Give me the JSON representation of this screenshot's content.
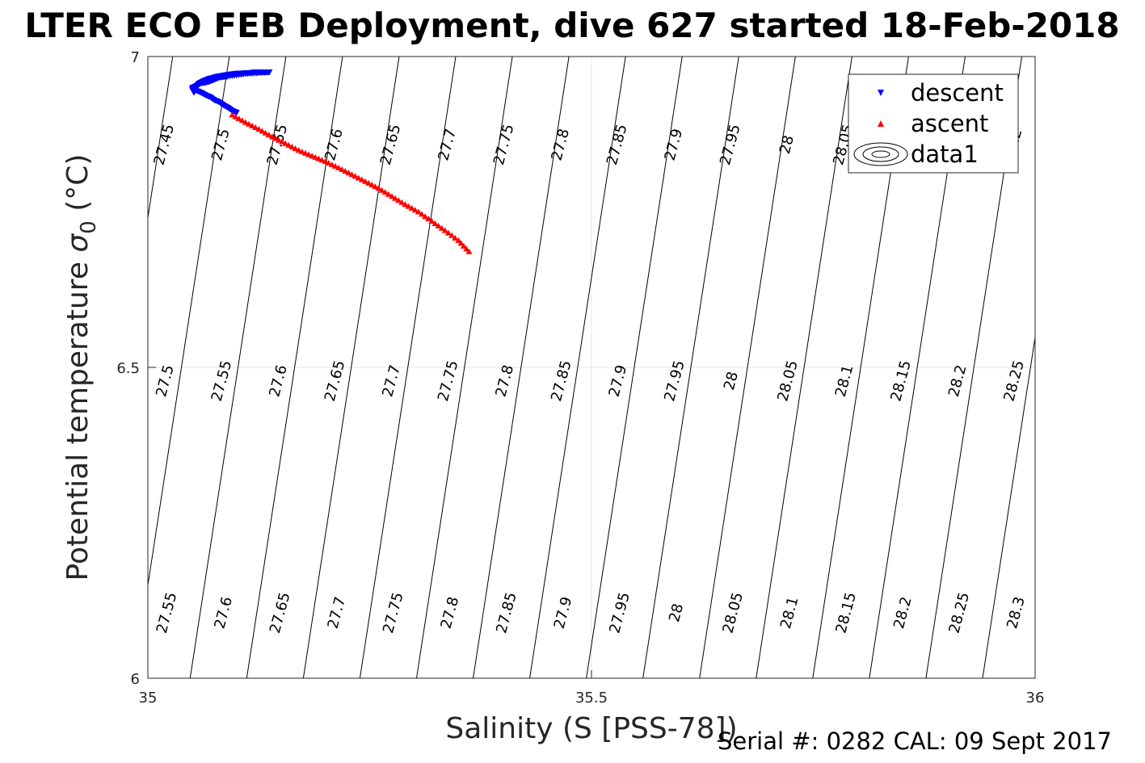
{
  "chart_data": {
    "type": "scatter",
    "title": "LTER ECO FEB Deployment, dive 627 started 18-Feb-2018",
    "xlabel": "Salinity (S [PSS-78])",
    "ylabel_main": "Potential temperature ",
    "ylabel_symbol": "σ",
    "ylabel_sub": "0",
    "ylabel_unit": " (°C)",
    "xlim": [
      35,
      36
    ],
    "ylim": [
      6,
      7
    ],
    "xticks": [
      35,
      35.5,
      36
    ],
    "xtick_labels": [
      "35",
      "35.5",
      "36"
    ],
    "yticks": [
      6,
      6.5,
      7
    ],
    "ytick_labels": [
      "6",
      "6.5",
      "7"
    ],
    "grid": true,
    "legend_position": "top-right",
    "legend": [
      "descent",
      "ascent",
      "data1"
    ],
    "series": [
      {
        "name": "descent",
        "color": "#0000ff",
        "marker": "triangle-down",
        "x": [
          35.052,
          35.05,
          35.055,
          35.058,
          35.062,
          35.065,
          35.07,
          35.074,
          35.078,
          35.082,
          35.086,
          35.09,
          35.095,
          35.1,
          35.105,
          35.11,
          35.115,
          35.12,
          35.125,
          35.13,
          35.135,
          35.137,
          35.13,
          35.12,
          35.11,
          35.1,
          35.09,
          35.085,
          35.08,
          35.075,
          35.07,
          35.065,
          35.06,
          35.055,
          35.05,
          35.055,
          35.06,
          35.065,
          35.07,
          35.075,
          35.08,
          35.085,
          35.09,
          35.095,
          35.1
        ],
        "y": [
          6.942,
          6.947,
          6.953,
          6.957,
          6.96,
          6.962,
          6.965,
          6.966,
          6.968,
          6.969,
          6.97,
          6.971,
          6.972,
          6.973,
          6.973,
          6.974,
          6.974,
          6.975,
          6.975,
          6.975,
          6.975,
          6.975,
          6.974,
          6.973,
          6.972,
          6.97,
          6.968,
          6.967,
          6.966,
          6.963,
          6.96,
          6.958,
          6.957,
          6.953,
          6.95,
          6.945,
          6.942,
          6.938,
          6.935,
          6.93,
          6.927,
          6.922,
          6.918,
          6.913,
          6.91
        ]
      },
      {
        "name": "ascent",
        "color": "#ff0000",
        "marker": "triangle-up",
        "x": [
          35.095,
          35.11,
          35.125,
          35.14,
          35.155,
          35.17,
          35.185,
          35.2,
          35.215,
          35.23,
          35.245,
          35.26,
          35.275,
          35.29,
          35.305,
          35.32,
          35.335,
          35.35,
          35.362
        ],
        "y": [
          6.906,
          6.894,
          6.883,
          6.871,
          6.86,
          6.849,
          6.84,
          6.831,
          6.821,
          6.81,
          6.799,
          6.788,
          6.775,
          6.762,
          6.75,
          6.735,
          6.72,
          6.704,
          6.686
        ]
      }
    ],
    "contours": [
      {
        "label": "27.45",
        "x_at_top": 35.028,
        "label_x": 35.018,
        "label_y": 6.845
      },
      {
        "label": "27.5",
        "x_at_top": 35.09,
        "label_x": 35.08,
        "label_y": 6.866
      },
      {
        "label": "27.55",
        "x_at_top": 35.154,
        "label_x": 35.143,
        "label_y": 6.866
      },
      {
        "label": "27.6",
        "x_at_top": 35.218,
        "label_x": 35.207,
        "label_y": 6.87
      },
      {
        "label": "27.65",
        "x_at_top": 35.282,
        "label_x": 35.265,
        "label_y": 6.87
      },
      {
        "label": "27.7",
        "x_at_top": 35.345,
        "label_x": 35.328,
        "label_y": 6.87
      },
      {
        "label": "27.75",
        "x_at_top": 35.409,
        "label_x": 35.392,
        "label_y": 6.87
      },
      {
        "label": "27.8",
        "x_at_top": 35.473,
        "label_x": 35.455,
        "label_y": 6.87
      },
      {
        "label": "27.85",
        "x_at_top": 35.537,
        "label_x": 35.519,
        "label_y": 6.87
      },
      {
        "label": "27.9",
        "x_at_top": 35.6,
        "label_x": 35.583,
        "label_y": 6.87
      },
      {
        "label": "27.95",
        "x_at_top": 35.664,
        "label_x": 35.646,
        "label_y": 6.87
      },
      {
        "label": "28",
        "x_at_top": 35.728,
        "label_x": 35.71,
        "label_y": 6.87
      },
      {
        "label": "28.05",
        "x_at_top": 35.791,
        "label_x": 35.773,
        "label_y": 6.87
      },
      {
        "label": "28.1",
        "x_at_top": 35.855,
        "label_x": 35.837,
        "label_y": 6.87
      },
      {
        "label": "28.15",
        "x_at_top": 35.919,
        "label_x": 35.9,
        "label_y": 6.87
      },
      {
        "label": "28.2",
        "x_at_top": 35.982,
        "label_x": 35.965,
        "label_y": 6.87
      },
      {
        "label": "28.25",
        "x_at_top": 36.046,
        "label_x": 36.0,
        "label_y": 6.87
      },
      {
        "label": "28.3",
        "x_at_top": 36.11,
        "label_x": 36.0,
        "label_y": 6.87
      }
    ],
    "contour_labels_mid": [
      "27.5",
      "27.55",
      "27.6",
      "27.65",
      "27.7",
      "27.75",
      "27.8",
      "27.85",
      "27.9",
      "27.95",
      "28",
      "28.05",
      "28.1",
      "28.15",
      "28.2",
      "28.25"
    ],
    "contour_labels_low": [
      "27.55",
      "27.6",
      "27.65",
      "27.7",
      "27.75",
      "27.8",
      "27.85",
      "27.9",
      "27.95",
      "28",
      "28.05",
      "28.1",
      "28.15",
      "28.2",
      "28.25",
      "28.3"
    ]
  },
  "footer": "Serial #: 0282  CAL: 09 Sept 2017"
}
